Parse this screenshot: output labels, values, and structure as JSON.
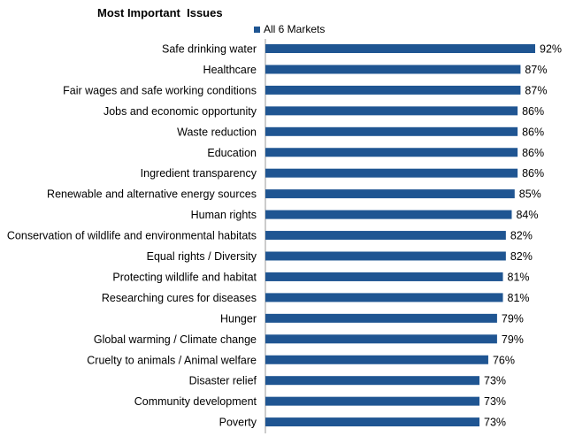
{
  "chart_data": {
    "type": "bar",
    "orientation": "horizontal",
    "title": "Most Important  Issues",
    "legend": {
      "position": "top",
      "label": "All 6 Markets"
    },
    "color": "#1F5592",
    "value_suffix": "%",
    "xlim": [
      0,
      100
    ],
    "grid": false,
    "categories": [
      "Safe drinking water",
      "Healthcare",
      "Fair wages and safe working conditions",
      "Jobs and economic opportunity",
      "Waste reduction",
      "Education",
      "Ingredient transparency",
      "Renewable and alternative energy sources",
      "Human rights",
      "Conservation of wildlife and environmental habitats",
      "Equal rights / Diversity",
      "Protecting wildlife and habitat",
      "Researching cures for diseases",
      "Hunger",
      "Global warming / Climate change",
      "Cruelty to animals / Animal welfare",
      "Disaster relief",
      "Community development",
      "Poverty"
    ],
    "series": [
      {
        "name": "All 6 Markets",
        "values": [
          92,
          87,
          87,
          86,
          86,
          86,
          86,
          85,
          84,
          82,
          82,
          81,
          81,
          79,
          79,
          76,
          73,
          73,
          73
        ]
      }
    ],
    "data_labels": [
      "92%",
      "87%",
      "87%",
      "86%",
      "86%",
      "86%",
      "86%",
      "85%",
      "84%",
      "82%",
      "82%",
      "81%",
      "81%",
      "79%",
      "79%",
      "76%",
      "73%",
      "73%",
      "73%"
    ]
  }
}
